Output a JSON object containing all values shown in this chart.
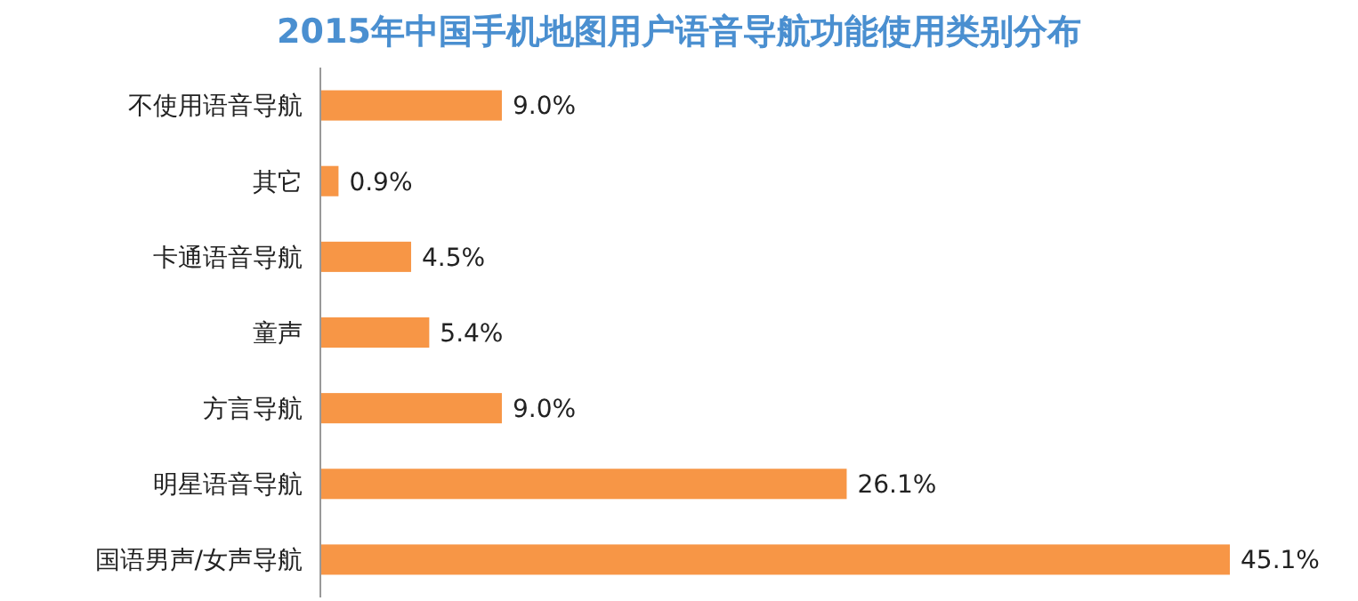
{
  "chart_data": {
    "type": "bar",
    "orientation": "horizontal",
    "title": "2015年中国手机地图用户语音导航功能使用类别分布",
    "categories": [
      "不使用语音导航",
      "其它",
      "卡通语音导航",
      "童声",
      "方言导航",
      "明星语音导航",
      "国语男声/女声导航"
    ],
    "values": [
      9.0,
      0.9,
      4.5,
      5.4,
      9.0,
      26.1,
      45.1
    ],
    "value_labels": [
      "9.0%",
      "0.9%",
      "4.5%",
      "5.4%",
      "9.0%",
      "26.1%",
      "45.1%"
    ],
    "color": "#f79646"
  }
}
